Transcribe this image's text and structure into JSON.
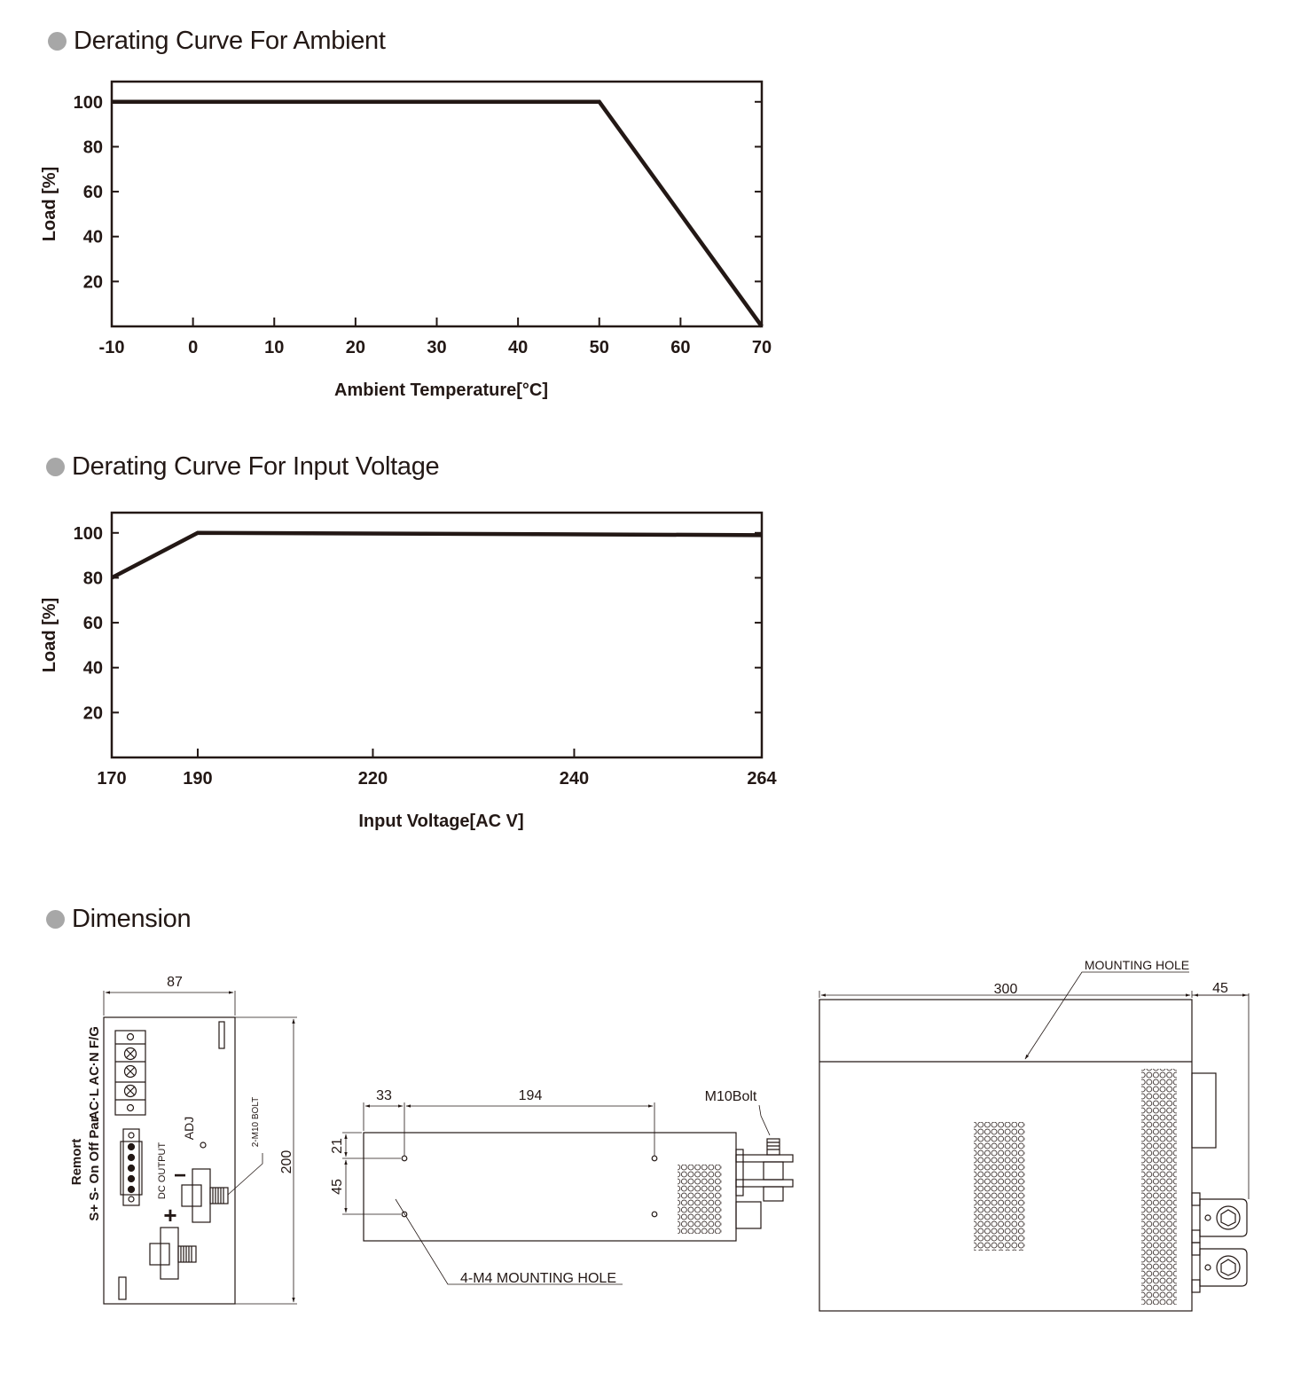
{
  "sections": {
    "ambient_title": "Derating Curve For Ambient",
    "voltage_title": "Derating Curve For Input Voltage",
    "dimension_title": "Dimension"
  },
  "chart_data": [
    {
      "type": "line",
      "title": "Derating Curve For Ambient",
      "xlabel": "Ambient Temperature[°C]",
      "ylabel": "Load [%]",
      "x_ticks": [
        -10,
        0,
        10,
        20,
        30,
        40,
        50,
        60,
        70
      ],
      "x_tick_labels": [
        "-10",
        "0",
        "10",
        "20",
        "30",
        "40",
        "50",
        "60",
        "70"
      ],
      "y_ticks": [
        20,
        40,
        60,
        80,
        100
      ],
      "y_tick_labels": [
        "20",
        "40",
        "60",
        "80",
        "100"
      ],
      "xlim": [
        -10,
        70
      ],
      "ylim": [
        0,
        109
      ],
      "grid": false,
      "series": [
        {
          "x": [
            -10,
            50,
            70
          ],
          "y": [
            100,
            100,
            0
          ]
        }
      ]
    },
    {
      "type": "line",
      "title": "Derating Curve For Input Voltage",
      "xlabel": "Input Voltage[AC V]",
      "ylabel": "Load [%]",
      "x_ticks": [
        170,
        190,
        220,
        240,
        264
      ],
      "x_tick_labels": [
        "170",
        "190",
        "220",
        "240",
        "264"
      ],
      "y_ticks": [
        20,
        40,
        60,
        80,
        100
      ],
      "y_tick_labels": [
        "20",
        "40",
        "60",
        "80",
        "100"
      ],
      "x_scale": "categorical-spacing",
      "ylim": [
        0,
        109
      ],
      "grid": false,
      "series": [
        {
          "x": [
            170,
            190,
            264
          ],
          "y": [
            80,
            100,
            99
          ]
        }
      ]
    }
  ],
  "dimension": {
    "front": {
      "width": "87",
      "height": "200",
      "ac_labels": "AC·L AC·N F/G",
      "remote_label": "Remort",
      "sense_labels": "S+ S- On Off Par",
      "dc_output": "DC OUTPUT",
      "adj": "ADJ",
      "bolt": "2-M10 BOLT",
      "plus": "+",
      "minus": "−"
    },
    "side": {
      "d1": "33",
      "d2": "194",
      "v1": "21",
      "v2": "45",
      "bolt": "M10Bolt",
      "hole": "4-M4 MOUNTING HOLE"
    },
    "top": {
      "length": "300",
      "terminal": "45",
      "hole": "MOUNTING HOLE"
    }
  }
}
